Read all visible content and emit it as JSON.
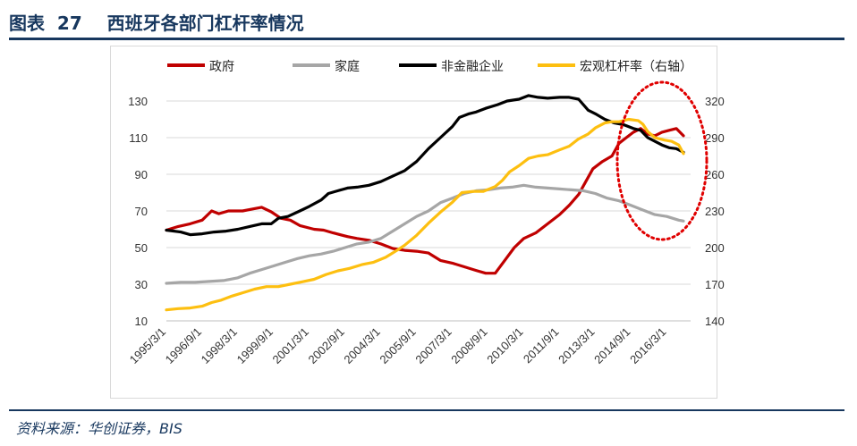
{
  "header": {
    "title": "图表  27    西班牙各部门杠杆率情况"
  },
  "footer": {
    "source": "资料来源：华创证券，BIS"
  },
  "chart_data": {
    "type": "line",
    "x": [
      "1995/3/1",
      "1996/9/1",
      "1998/3/1",
      "1999/9/1",
      "2001/3/1",
      "2002/9/1",
      "2004/3/1",
      "2005/9/1",
      "2007/3/1",
      "2008/9/1",
      "2010/3/1",
      "2011/9/1",
      "2013/3/1",
      "2014/9/1",
      "2016/3/1"
    ],
    "y_left": {
      "ticks": [
        10,
        30,
        50,
        70,
        90,
        110,
        130
      ],
      "range": [
        10,
        130
      ]
    },
    "y_right": {
      "ticks": [
        140,
        170,
        200,
        230,
        260,
        290,
        320
      ],
      "range": [
        140,
        320
      ]
    },
    "legend_position": "top",
    "grid": true,
    "annotation": "dotted red ellipse highlighting 2014-2016",
    "series": [
      {
        "name": "政府",
        "color": "#c00000",
        "axis": "left",
        "points": [
          [
            1995.0,
            59.5
          ],
          [
            1995.5,
            61.5
          ],
          [
            1996.0,
            63
          ],
          [
            1996.5,
            65
          ],
          [
            1996.9,
            70
          ],
          [
            1997.2,
            68.5
          ],
          [
            1997.6,
            70
          ],
          [
            1998.2,
            70
          ],
          [
            1998.6,
            71
          ],
          [
            1999.0,
            72
          ],
          [
            1999.4,
            69.5
          ],
          [
            1999.8,
            66
          ],
          [
            2000.2,
            65
          ],
          [
            2000.6,
            62
          ],
          [
            2001.2,
            60
          ],
          [
            2001.6,
            59.5
          ],
          [
            2002.0,
            58
          ],
          [
            2002.6,
            56
          ],
          [
            2003.0,
            55
          ],
          [
            2003.5,
            54
          ],
          [
            2004.0,
            52
          ],
          [
            2004.5,
            49.5
          ],
          [
            2005.0,
            48.5
          ],
          [
            2005.5,
            48
          ],
          [
            2006.0,
            47
          ],
          [
            2006.5,
            43
          ],
          [
            2007.0,
            41.5
          ],
          [
            2007.5,
            39.5
          ],
          [
            2008.0,
            37.5
          ],
          [
            2008.4,
            36
          ],
          [
            2008.8,
            36
          ],
          [
            2009.2,
            43
          ],
          [
            2009.6,
            50
          ],
          [
            2010.0,
            55
          ],
          [
            2010.5,
            58
          ],
          [
            2011.0,
            63
          ],
          [
            2011.5,
            68
          ],
          [
            2011.9,
            73
          ],
          [
            2012.3,
            79
          ],
          [
            2012.6,
            86
          ],
          [
            2012.9,
            93
          ],
          [
            2013.3,
            97
          ],
          [
            2013.7,
            100
          ],
          [
            2014.0,
            107
          ],
          [
            2014.3,
            110
          ],
          [
            2014.6,
            113
          ],
          [
            2014.9,
            115
          ],
          [
            2015.2,
            112
          ],
          [
            2015.5,
            111
          ],
          [
            2015.8,
            113
          ],
          [
            2016.1,
            114
          ],
          [
            2016.4,
            115
          ],
          [
            2016.7,
            111
          ]
        ]
      },
      {
        "name": "家庭",
        "color": "#a6a6a6",
        "axis": "left",
        "points": [
          [
            1995.0,
            30.5
          ],
          [
            1995.6,
            31
          ],
          [
            1996.2,
            31
          ],
          [
            1996.8,
            31.5
          ],
          [
            1997.4,
            32
          ],
          [
            1998.0,
            33.5
          ],
          [
            1998.5,
            36
          ],
          [
            1999.0,
            38
          ],
          [
            1999.5,
            40
          ],
          [
            2000.0,
            42
          ],
          [
            2000.5,
            44
          ],
          [
            2001.0,
            45.5
          ],
          [
            2001.5,
            46.5
          ],
          [
            2002.0,
            48
          ],
          [
            2002.5,
            50
          ],
          [
            2003.0,
            52
          ],
          [
            2003.5,
            53
          ],
          [
            2004.0,
            55
          ],
          [
            2004.5,
            59
          ],
          [
            2005.0,
            63
          ],
          [
            2005.5,
            67
          ],
          [
            2006.0,
            70
          ],
          [
            2006.5,
            74.5
          ],
          [
            2007.0,
            77
          ],
          [
            2007.5,
            79.5
          ],
          [
            2008.0,
            81
          ],
          [
            2008.5,
            81.5
          ],
          [
            2009.0,
            82.5
          ],
          [
            2009.5,
            83
          ],
          [
            2010.0,
            84
          ],
          [
            2010.5,
            83
          ],
          [
            2011.0,
            82.5
          ],
          [
            2011.5,
            82
          ],
          [
            2012.0,
            81.5
          ],
          [
            2012.5,
            81
          ],
          [
            2013.0,
            79.5
          ],
          [
            2013.5,
            77
          ],
          [
            2014.0,
            75.5
          ],
          [
            2014.5,
            73
          ],
          [
            2015.0,
            70.5
          ],
          [
            2015.5,
            68
          ],
          [
            2016.0,
            67
          ],
          [
            2016.5,
            65
          ],
          [
            2016.7,
            64.5
          ]
        ]
      },
      {
        "name": "非金融企业",
        "color": "#000000",
        "axis": "left",
        "points": [
          [
            1995.0,
            59.5
          ],
          [
            1995.6,
            58.5
          ],
          [
            1996.0,
            57
          ],
          [
            1996.5,
            57.5
          ],
          [
            1997.0,
            58.5
          ],
          [
            1997.5,
            59
          ],
          [
            1998.0,
            60
          ],
          [
            1998.5,
            61.5
          ],
          [
            1999.0,
            63
          ],
          [
            1999.4,
            63
          ],
          [
            1999.7,
            66
          ],
          [
            2000.1,
            67
          ],
          [
            2000.6,
            70
          ],
          [
            2001.0,
            72.5
          ],
          [
            2001.5,
            76
          ],
          [
            2001.8,
            79.5
          ],
          [
            2002.2,
            81
          ],
          [
            2002.6,
            82.5
          ],
          [
            2003.0,
            83
          ],
          [
            2003.5,
            84
          ],
          [
            2004.0,
            86
          ],
          [
            2004.5,
            89
          ],
          [
            2005.0,
            92
          ],
          [
            2005.5,
            97
          ],
          [
            2006.0,
            104
          ],
          [
            2006.5,
            110
          ],
          [
            2007.0,
            116
          ],
          [
            2007.3,
            121
          ],
          [
            2007.7,
            123
          ],
          [
            2008.0,
            124
          ],
          [
            2008.4,
            126
          ],
          [
            2008.9,
            128
          ],
          [
            2009.3,
            130
          ],
          [
            2009.8,
            131
          ],
          [
            2010.2,
            133
          ],
          [
            2010.6,
            132
          ],
          [
            2011.0,
            131.5
          ],
          [
            2011.5,
            132
          ],
          [
            2011.9,
            132
          ],
          [
            2012.3,
            131
          ],
          [
            2012.7,
            125
          ],
          [
            2013.0,
            123
          ],
          [
            2013.4,
            120
          ],
          [
            2013.8,
            118
          ],
          [
            2014.2,
            117
          ],
          [
            2014.6,
            115
          ],
          [
            2014.9,
            114
          ],
          [
            2015.2,
            110
          ],
          [
            2015.5,
            108
          ],
          [
            2015.8,
            106
          ],
          [
            2016.1,
            104.5
          ],
          [
            2016.4,
            104
          ],
          [
            2016.7,
            102
          ]
        ]
      },
      {
        "name": "宏观杠杆率（右轴）",
        "color": "#fdbf10",
        "axis": "right",
        "points": [
          [
            1995.0,
            149
          ],
          [
            1995.5,
            150
          ],
          [
            1996.0,
            150.5
          ],
          [
            1996.5,
            152
          ],
          [
            1996.9,
            155
          ],
          [
            1997.3,
            157
          ],
          [
            1997.7,
            160
          ],
          [
            1998.2,
            163
          ],
          [
            1998.7,
            166
          ],
          [
            1999.2,
            168
          ],
          [
            1999.7,
            168
          ],
          [
            2000.2,
            170
          ],
          [
            2000.7,
            172
          ],
          [
            2001.2,
            174
          ],
          [
            2001.7,
            178
          ],
          [
            2002.2,
            181
          ],
          [
            2002.7,
            183
          ],
          [
            2003.2,
            186
          ],
          [
            2003.7,
            188
          ],
          [
            2004.2,
            192
          ],
          [
            2004.7,
            198
          ],
          [
            2005.0,
            202
          ],
          [
            2005.5,
            210
          ],
          [
            2006.0,
            220
          ],
          [
            2006.5,
            229
          ],
          [
            2007.0,
            237
          ],
          [
            2007.4,
            245
          ],
          [
            2007.9,
            246
          ],
          [
            2008.3,
            246
          ],
          [
            2008.8,
            250
          ],
          [
            2009.1,
            255
          ],
          [
            2009.4,
            262
          ],
          [
            2009.8,
            267
          ],
          [
            2010.2,
            273
          ],
          [
            2010.6,
            275
          ],
          [
            2011.0,
            276
          ],
          [
            2011.5,
            280
          ],
          [
            2011.9,
            283
          ],
          [
            2012.3,
            289
          ],
          [
            2012.7,
            293
          ],
          [
            2013.0,
            298
          ],
          [
            2013.4,
            302
          ],
          [
            2013.7,
            303
          ],
          [
            2014.0,
            303
          ],
          [
            2014.4,
            305
          ],
          [
            2014.8,
            304
          ],
          [
            2015.0,
            301
          ],
          [
            2015.2,
            295
          ],
          [
            2015.5,
            290
          ],
          [
            2015.9,
            288
          ],
          [
            2016.2,
            287
          ],
          [
            2016.5,
            284
          ],
          [
            2016.7,
            277
          ]
        ]
      }
    ]
  }
}
